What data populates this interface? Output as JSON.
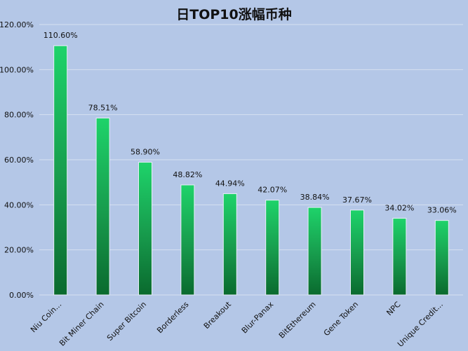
{
  "chart_data": {
    "type": "bar",
    "title": "日TOP10涨幅币种",
    "categories": [
      "Niu Coin...",
      "Bit Miner Chain",
      "Super Bitcoin",
      "Borderless",
      "Breakout",
      "Blur-Panax",
      "BitEthereum",
      "Gene Token",
      "NPC",
      "Unique Credit..."
    ],
    "values": [
      110.6,
      78.51,
      58.9,
      48.82,
      44.94,
      42.07,
      38.84,
      37.67,
      34.02,
      33.06
    ],
    "value_labels": [
      "110.60%",
      "78.51%",
      "58.90%",
      "48.82%",
      "44.94%",
      "42.07%",
      "38.84%",
      "37.67%",
      "34.02%",
      "33.06%"
    ],
    "yticks": [
      "0.00%",
      "20.00%",
      "40.00%",
      "60.00%",
      "80.00%",
      "100.00%",
      "120.00%"
    ],
    "ylim": [
      0,
      120
    ],
    "xlabel": "",
    "ylabel": "",
    "grid": true,
    "colors": {
      "background": "#b4c7e7",
      "bar_top": "#1ed36a",
      "bar_bottom": "#0a6a2e",
      "grid": "#d6e0f0"
    }
  }
}
